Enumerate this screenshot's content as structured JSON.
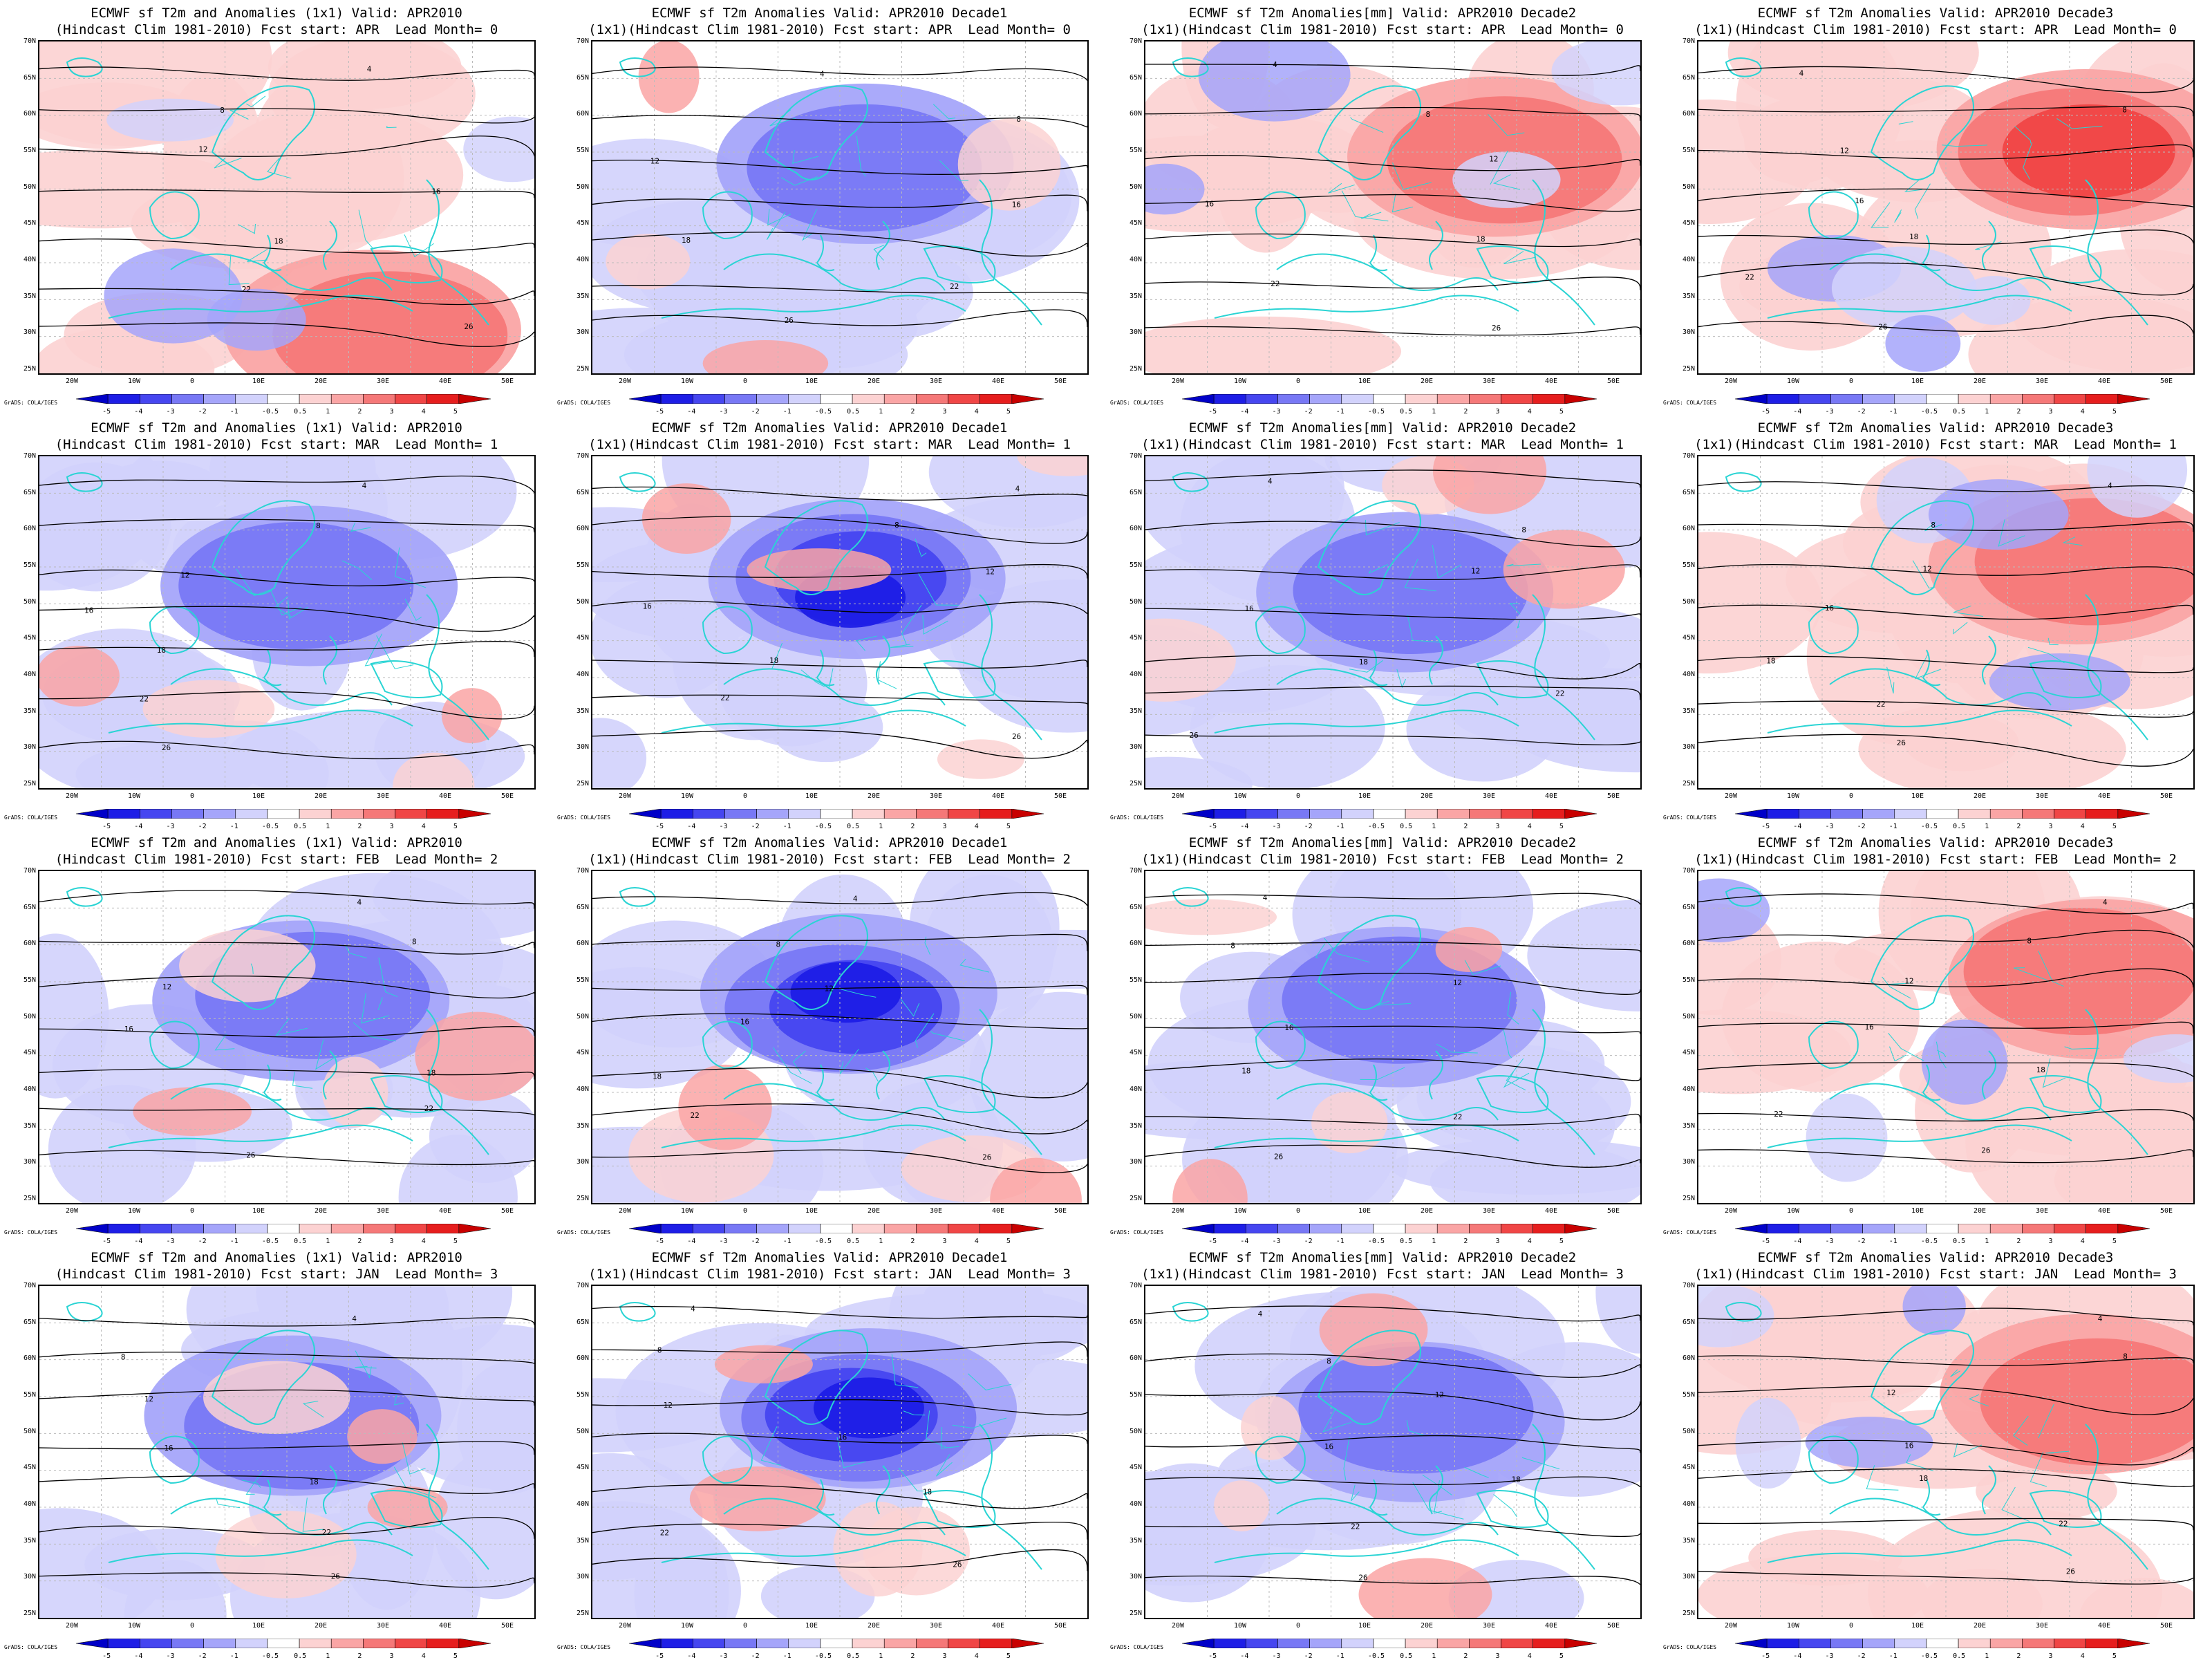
{
  "figure": {
    "rows": [
      {
        "lead": "Lead Month= 0",
        "start": "APR"
      },
      {
        "lead": "Lead Month= 1",
        "start": "MAR"
      },
      {
        "lead": "Lead Month= 2",
        "start": "FEB"
      },
      {
        "lead": "Lead Month= 3",
        "start": "JAN"
      }
    ],
    "columns": [
      {
        "title_line1": "ECMWF sf T2m and Anomalies (1x1) Valid: APR2010",
        "line2_prefix": "(Hindcast Clim 1981-2010) Fcst start: "
      },
      {
        "title_line1": "ECMWF sf T2m Anomalies Valid: APR2010 Decade1",
        "line2_prefix": "(1x1)(Hindcast Clim 1981-2010) Fcst start: "
      },
      {
        "title_line1": "ECMWF sf T2m Anomalies[mm] Valid: APR2010 Decade2",
        "line2_prefix": "(1x1)(Hindcast Clim 1981-2010) Fcst start: "
      },
      {
        "title_line1": "ECMWF sf T2m Anomalies Valid: APR2010 Decade3",
        "line2_prefix": "(1x1)(Hindcast Clim 1981-2010) Fcst start: "
      }
    ],
    "panels_line2": [
      [
        "(Hindcast Clim 1981-2010) Fcst start: APR  Lead Month= 0",
        "(1x1)(Hindcast Clim 1981-2010) Fcst start: APR  Lead Month= 0",
        "(1x1)(Hindcast Clim 1981-2010) Fcst start: APR  Lead Month= 0",
        "(1x1)(Hindcast Clim 1981-2010) Fcst start: APR  Lead Month= 0"
      ],
      [
        "(Hindcast Clim 1981-2010) Fcst start: MAR  Lead Month= 1",
        "(1x1)(Hindcast Clim 1981-2010) Fcst start: MAR  Lead Month= 1",
        "(1x1)(Hindcast Clim 1981-2010) Fcst start: MAR  Lead Month= 1",
        "(1x1)(Hindcast Clim 1981-2010) Fcst start: MAR  Lead Month= 1"
      ],
      [
        "(Hindcast Clim 1981-2010) Fcst start: FEB  Lead Month= 2",
        "(1x1)(Hindcast Clim 1981-2010) Fcst start: FEB  Lead Month= 2",
        "(1x1)(Hindcast Clim 1981-2010) Fcst start: FEB  Lead Month= 2",
        "(1x1)(Hindcast Clim 1981-2010) Fcst start: FEB  Lead Month= 2"
      ],
      [
        "(Hindcast Clim 1981-2010) Fcst start: JAN  Lead Month= 3",
        "(1x1)(Hindcast Clim 1981-2010) Fcst start: JAN  Lead Month= 3",
        "(1x1)(Hindcast Clim 1981-2010) Fcst start: JAN  Lead Month= 3",
        "(1x1)(Hindcast Clim 1981-2010) Fcst start: JAN  Lead Month= 3"
      ]
    ],
    "lat_labels": [
      "70N",
      "65N",
      "60N",
      "55N",
      "50N",
      "45N",
      "40N",
      "35N",
      "30N",
      "25N"
    ],
    "lon_labels": [
      "20W",
      "10W",
      "0",
      "10E",
      "20E",
      "30E",
      "40E",
      "50E"
    ],
    "colorbar_labels": [
      "-5",
      "-4",
      "-3",
      "-2",
      "-1",
      "-0.5",
      "0.5",
      "1",
      "2",
      "3",
      "4",
      "5"
    ],
    "colorbar_colors": [
      "#0000c8",
      "#1e1ee6",
      "#4646f0",
      "#7878f5",
      "#a5a5fa",
      "#d2d2fc",
      "#ffffff",
      "#fcd2d2",
      "#faa5a5",
      "#f57878",
      "#f04646",
      "#e61e1e",
      "#c80000"
    ],
    "credit": "GrADS: COLA/IGES",
    "contour_labels": [
      "4",
      "8",
      "12",
      "16",
      "18",
      "22",
      "26"
    ],
    "anomaly_sign": [
      [
        "warm",
        "cold",
        "warm",
        "warm"
      ],
      [
        "cold",
        "cold",
        "cold",
        "warm"
      ],
      [
        "cold",
        "cold",
        "cold",
        "warm"
      ],
      [
        "cold",
        "cold",
        "cold",
        "warm"
      ]
    ]
  }
}
